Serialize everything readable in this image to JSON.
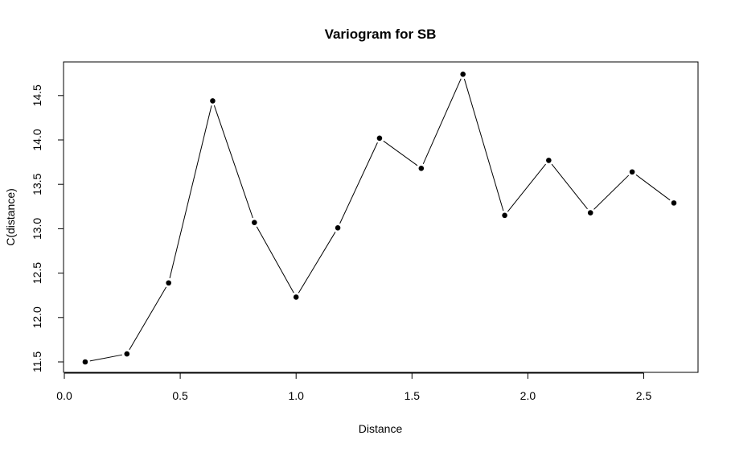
{
  "chart_data": {
    "type": "line",
    "title": "Variogram for SB",
    "xlabel": "Distance",
    "ylabel": "C(distance)",
    "xlim": [
      0,
      2.75
    ],
    "ylim": [
      11.5,
      14.75
    ],
    "xticks": [
      "0.0",
      "0.5",
      "1.0",
      "1.5",
      "2.0",
      "2.5"
    ],
    "yticks": [
      "11.5",
      "12.0",
      "12.5",
      "13.0",
      "13.5",
      "14.0",
      "14.5"
    ],
    "grid": false,
    "series": [
      {
        "markers": "filled-circle",
        "color": "#000000",
        "points": [
          {
            "x": 0.09,
            "y": 11.5
          },
          {
            "x": 0.27,
            "y": 11.59
          },
          {
            "x": 0.45,
            "y": 12.39
          },
          {
            "x": 0.64,
            "y": 14.44
          },
          {
            "x": 0.82,
            "y": 13.07
          },
          {
            "x": 1.0,
            "y": 12.23
          },
          {
            "x": 1.18,
            "y": 13.01
          },
          {
            "x": 1.36,
            "y": 14.02
          },
          {
            "x": 1.54,
            "y": 13.68
          },
          {
            "x": 1.72,
            "y": 14.74
          },
          {
            "x": 1.9,
            "y": 13.15
          },
          {
            "x": 2.09,
            "y": 13.77
          },
          {
            "x": 2.27,
            "y": 13.18
          },
          {
            "x": 2.45,
            "y": 13.64
          },
          {
            "x": 2.63,
            "y": 13.29
          }
        ]
      }
    ]
  }
}
